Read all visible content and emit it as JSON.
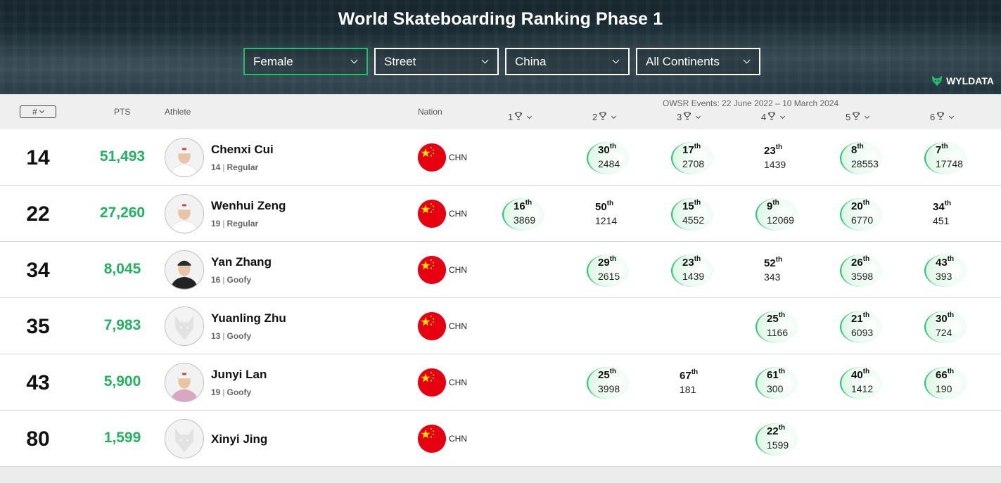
{
  "header": {
    "title": "World Skateboarding Ranking Phase 1",
    "filters": [
      {
        "label": "Female",
        "active": true
      },
      {
        "label": "Street",
        "active": false
      },
      {
        "label": "China",
        "active": false
      },
      {
        "label": "All Continents",
        "active": false
      }
    ],
    "brand": "WYLDATA"
  },
  "table_header": {
    "sort_label": "#",
    "pts": "PTS",
    "athlete": "Athlete",
    "nation": "Nation",
    "events_range": "OWSR Events: 22 June 2022 – 10 March 2024",
    "events": [
      "1",
      "2",
      "3",
      "4",
      "5",
      "6"
    ]
  },
  "colors": {
    "accent": "#22b35e",
    "header_bg": "#1d2f38",
    "flag": "#e60012"
  },
  "rows": [
    {
      "rank": "14",
      "pts": "51,493",
      "name": "Chenxi Cui",
      "age": "14",
      "stance": "Regular",
      "avatar": "photo",
      "nation": "CHN",
      "events": [
        null,
        {
          "place": "30",
          "suffix": "th",
          "points": "2484",
          "hl": true
        },
        {
          "place": "17",
          "suffix": "th",
          "points": "2708",
          "hl": true
        },
        {
          "place": "23",
          "suffix": "th",
          "points": "1439",
          "hl": false
        },
        {
          "place": "8",
          "suffix": "th",
          "points": "28553",
          "hl": true
        },
        {
          "place": "7",
          "suffix": "th",
          "points": "17748",
          "hl": true
        }
      ]
    },
    {
      "rank": "22",
      "pts": "27,260",
      "name": "Wenhui Zeng",
      "age": "19",
      "stance": "Regular",
      "avatar": "photo",
      "nation": "CHN",
      "events": [
        {
          "place": "16",
          "suffix": "th",
          "points": "3869",
          "hl": true
        },
        {
          "place": "50",
          "suffix": "th",
          "points": "1214",
          "hl": false
        },
        {
          "place": "15",
          "suffix": "th",
          "points": "4552",
          "hl": true
        },
        {
          "place": "9",
          "suffix": "th",
          "points": "12069",
          "hl": true
        },
        {
          "place": "20",
          "suffix": "th",
          "points": "6770",
          "hl": true
        },
        {
          "place": "34",
          "suffix": "th",
          "points": "451",
          "hl": false
        }
      ]
    },
    {
      "rank": "34",
      "pts": "8,045",
      "name": "Yan Zhang",
      "age": "16",
      "stance": "Goofy",
      "avatar": "photo",
      "nation": "CHN",
      "events": [
        null,
        {
          "place": "29",
          "suffix": "th",
          "points": "2615",
          "hl": true
        },
        {
          "place": "23",
          "suffix": "th",
          "points": "1439",
          "hl": true
        },
        {
          "place": "52",
          "suffix": "th",
          "points": "343",
          "hl": false
        },
        {
          "place": "26",
          "suffix": "th",
          "points": "3598",
          "hl": true
        },
        {
          "place": "43",
          "suffix": "th",
          "points": "393",
          "hl": true
        }
      ]
    },
    {
      "rank": "35",
      "pts": "7,983",
      "name": "Yuanling Zhu",
      "age": "13",
      "stance": "Goofy",
      "avatar": "placeholder",
      "nation": "CHN",
      "events": [
        null,
        null,
        null,
        {
          "place": "25",
          "suffix": "th",
          "points": "1166",
          "hl": true
        },
        {
          "place": "21",
          "suffix": "th",
          "points": "6093",
          "hl": true
        },
        {
          "place": "30",
          "suffix": "th",
          "points": "724",
          "hl": true
        }
      ]
    },
    {
      "rank": "43",
      "pts": "5,900",
      "name": "Junyi Lan",
      "age": "19",
      "stance": "Goofy",
      "avatar": "photo",
      "nation": "CHN",
      "events": [
        null,
        {
          "place": "25",
          "suffix": "th",
          "points": "3998",
          "hl": true
        },
        {
          "place": "67",
          "suffix": "th",
          "points": "181",
          "hl": false
        },
        {
          "place": "61",
          "suffix": "th",
          "points": "300",
          "hl": true
        },
        {
          "place": "40",
          "suffix": "th",
          "points": "1412",
          "hl": true
        },
        {
          "place": "66",
          "suffix": "th",
          "points": "190",
          "hl": true
        }
      ]
    },
    {
      "rank": "80",
      "pts": "1,599",
      "name": "Xinyi Jing",
      "age": "",
      "stance": "",
      "avatar": "placeholder",
      "nation": "CHN",
      "events": [
        null,
        null,
        null,
        {
          "place": "22",
          "suffix": "th",
          "points": "1599",
          "hl": true
        },
        null,
        null
      ]
    }
  ]
}
